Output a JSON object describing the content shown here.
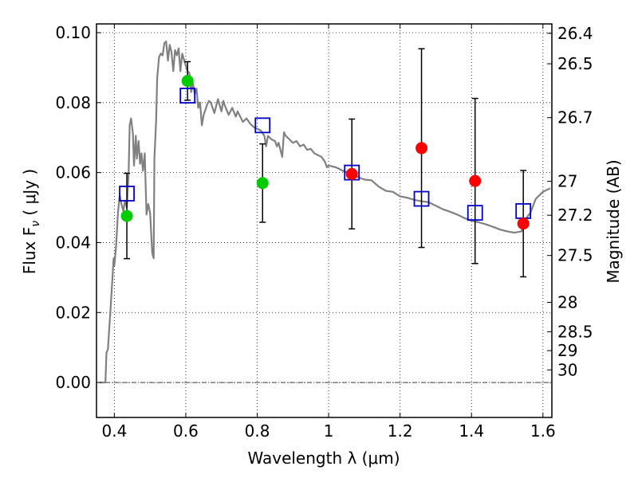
{
  "chart_data": {
    "type": "scatter",
    "xlabel": "Wavelength  λ (μm)",
    "ylabel": "Flux  F",
    "ylabel_sub": "ν",
    "ylabel_unit": " ( μJy )",
    "y2label": "Magnitude (AB)",
    "xlim": [
      0.35,
      1.625
    ],
    "ylim": [
      -0.01,
      0.1025
    ],
    "grid": true,
    "x_ticks": [
      0.4,
      0.6,
      0.8,
      1.0,
      1.2,
      1.4,
      1.6
    ],
    "x_tick_labels": [
      "0.4",
      "0.6",
      "0.8",
      "1",
      "1.2",
      "1.4",
      "1.6"
    ],
    "y_ticks": [
      0.0,
      0.02,
      0.04,
      0.06,
      0.08,
      0.1
    ],
    "y_tick_labels": [
      "0.00",
      "0.02",
      "0.04",
      "0.06",
      "0.08",
      "0.10"
    ],
    "y2_ticks": [
      {
        "label": "26.4",
        "flux": 0.0998
      },
      {
        "label": "26.5",
        "flux": 0.0911
      },
      {
        "label": "26.7",
        "flux": 0.0757
      },
      {
        "label": "27",
        "flux": 0.0575
      },
      {
        "label": "27.2",
        "flux": 0.0478
      },
      {
        "label": "27.5",
        "flux": 0.0363
      },
      {
        "label": "28",
        "flux": 0.0229
      },
      {
        "label": "28.5",
        "flux": 0.0145
      },
      {
        "label": "29",
        "flux": 0.0091
      },
      {
        "label": "30",
        "flux": 0.0036
      }
    ],
    "colors": {
      "model": "#808080",
      "boxes": "#0000cc",
      "green": "#00cc00",
      "red": "#ff0000",
      "errorbar": "#000000",
      "zero_line": "#000000"
    },
    "series": [
      {
        "kind": "line",
        "points": [
          [
            0.36,
            0.0
          ],
          [
            0.375,
            0.0
          ],
          [
            0.378,
            0.0085
          ],
          [
            0.382,
            0.0095
          ],
          [
            0.39,
            0.022
          ],
          [
            0.398,
            0.0355
          ],
          [
            0.4,
            0.0335
          ],
          [
            0.405,
            0.039
          ],
          [
            0.41,
            0.0485
          ],
          [
            0.415,
            0.0535
          ],
          [
            0.42,
            0.051
          ],
          [
            0.425,
            0.049
          ],
          [
            0.43,
            0.052
          ],
          [
            0.435,
            0.05
          ],
          [
            0.44,
            0.06
          ],
          [
            0.443,
            0.0735
          ],
          [
            0.447,
            0.0755
          ],
          [
            0.452,
            0.071
          ],
          [
            0.455,
            0.062
          ],
          [
            0.46,
            0.0705
          ],
          [
            0.463,
            0.064
          ],
          [
            0.468,
            0.069
          ],
          [
            0.472,
            0.0625
          ],
          [
            0.476,
            0.0655
          ],
          [
            0.48,
            0.0605
          ],
          [
            0.485,
            0.0655
          ],
          [
            0.49,
            0.048
          ],
          [
            0.495,
            0.051
          ],
          [
            0.5,
            0.0485
          ],
          [
            0.506,
            0.037
          ],
          [
            0.51,
            0.0355
          ],
          [
            0.512,
            0.064
          ],
          [
            0.517,
            0.075
          ],
          [
            0.52,
            0.087
          ],
          [
            0.525,
            0.093
          ],
          [
            0.53,
            0.094
          ],
          [
            0.535,
            0.0935
          ],
          [
            0.54,
            0.097
          ],
          [
            0.545,
            0.0975
          ],
          [
            0.55,
            0.092
          ],
          [
            0.555,
            0.0965
          ],
          [
            0.56,
            0.0945
          ],
          [
            0.565,
            0.089
          ],
          [
            0.57,
            0.095
          ],
          [
            0.575,
            0.0935
          ],
          [
            0.58,
            0.0955
          ],
          [
            0.585,
            0.089
          ],
          [
            0.59,
            0.094
          ],
          [
            0.6,
            0.0905
          ],
          [
            0.605,
            0.089
          ],
          [
            0.61,
            0.0885
          ],
          [
            0.615,
            0.083
          ],
          [
            0.62,
            0.0855
          ],
          [
            0.625,
            0.0825
          ],
          [
            0.63,
            0.084
          ],
          [
            0.635,
            0.0785
          ],
          [
            0.64,
            0.08
          ],
          [
            0.645,
            0.0735
          ],
          [
            0.65,
            0.0765
          ],
          [
            0.655,
            0.078
          ],
          [
            0.66,
            0.0795
          ],
          [
            0.665,
            0.0805
          ],
          [
            0.67,
            0.08
          ],
          [
            0.68,
            0.077
          ],
          [
            0.69,
            0.081
          ],
          [
            0.7,
            0.0775
          ],
          [
            0.705,
            0.0805
          ],
          [
            0.71,
            0.079
          ],
          [
            0.72,
            0.0765
          ],
          [
            0.73,
            0.0785
          ],
          [
            0.74,
            0.076
          ],
          [
            0.745,
            0.0775
          ],
          [
            0.75,
            0.0765
          ],
          [
            0.76,
            0.0745
          ],
          [
            0.77,
            0.0755
          ],
          [
            0.78,
            0.074
          ],
          [
            0.79,
            0.073
          ],
          [
            0.8,
            0.0725
          ],
          [
            0.81,
            0.072
          ],
          [
            0.82,
            0.0705
          ],
          [
            0.825,
            0.0675
          ],
          [
            0.83,
            0.0705
          ],
          [
            0.84,
            0.0695
          ],
          [
            0.85,
            0.069
          ],
          [
            0.855,
            0.0675
          ],
          [
            0.86,
            0.0685
          ],
          [
            0.865,
            0.0665
          ],
          [
            0.87,
            0.0645
          ],
          [
            0.875,
            0.0715
          ],
          [
            0.88,
            0.0705
          ],
          [
            0.89,
            0.0695
          ],
          [
            0.9,
            0.0685
          ],
          [
            0.91,
            0.069
          ],
          [
            0.92,
            0.0675
          ],
          [
            0.93,
            0.068
          ],
          [
            0.94,
            0.0665
          ],
          [
            0.95,
            0.0668
          ],
          [
            0.96,
            0.0655
          ],
          [
            0.97,
            0.065
          ],
          [
            0.98,
            0.0645
          ],
          [
            0.99,
            0.063
          ],
          [
            0.995,
            0.0615
          ],
          [
            1.0,
            0.062
          ],
          [
            1.02,
            0.0615
          ],
          [
            1.04,
            0.0605
          ],
          [
            1.06,
            0.0598
          ],
          [
            1.08,
            0.0588
          ],
          [
            1.1,
            0.058
          ],
          [
            1.12,
            0.0578
          ],
          [
            1.14,
            0.056
          ],
          [
            1.16,
            0.0548
          ],
          [
            1.18,
            0.0545
          ],
          [
            1.2,
            0.0532
          ],
          [
            1.22,
            0.0528
          ],
          [
            1.24,
            0.0522
          ],
          [
            1.26,
            0.0518
          ],
          [
            1.28,
            0.0515
          ],
          [
            1.3,
            0.0505
          ],
          [
            1.32,
            0.0495
          ],
          [
            1.34,
            0.0488
          ],
          [
            1.36,
            0.048
          ],
          [
            1.38,
            0.047
          ],
          [
            1.4,
            0.0462
          ],
          [
            1.42,
            0.0458
          ],
          [
            1.44,
            0.0452
          ],
          [
            1.46,
            0.0445
          ],
          [
            1.48,
            0.0437
          ],
          [
            1.5,
            0.0432
          ],
          [
            1.52,
            0.0428
          ],
          [
            1.54,
            0.0432
          ],
          [
            1.55,
            0.0465
          ],
          [
            1.565,
            0.0485
          ],
          [
            1.58,
            0.0525
          ],
          [
            1.6,
            0.0545
          ],
          [
            1.62,
            0.0555
          ]
        ]
      },
      {
        "kind": "boxes",
        "points": [
          [
            0.435,
            0.054
          ],
          [
            0.605,
            0.082
          ],
          [
            0.815,
            0.0735
          ],
          [
            1.065,
            0.06
          ],
          [
            1.26,
            0.0525
          ],
          [
            1.41,
            0.0485
          ],
          [
            1.545,
            0.049
          ]
        ]
      },
      {
        "kind": "green-dots",
        "points": [
          [
            0.435,
            0.0476,
            0.0122
          ],
          [
            0.605,
            0.0862,
            0.0055
          ],
          [
            0.815,
            0.057,
            0.0112
          ]
        ]
      },
      {
        "kind": "red-dots",
        "points": [
          [
            1.065,
            0.0596,
            0.0157
          ],
          [
            1.26,
            0.067,
            0.0284
          ],
          [
            1.41,
            0.0576,
            0.0236
          ],
          [
            1.545,
            0.0454,
            0.0152
          ]
        ]
      }
    ]
  }
}
